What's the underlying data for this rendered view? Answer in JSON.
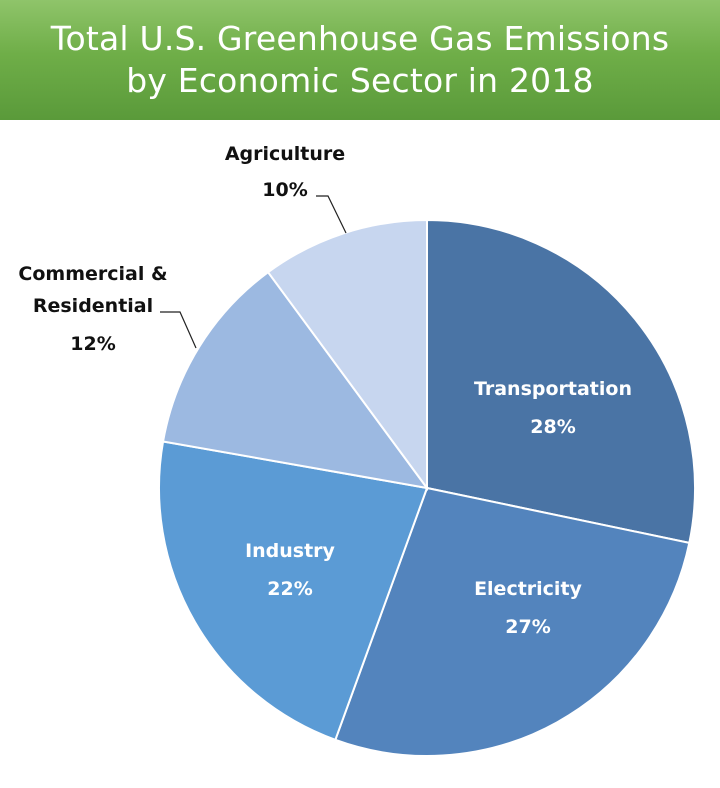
{
  "title": {
    "line1": "Total U.S. Greenhouse Gas Emissions",
    "line2": "by Economic Sector in 2018"
  },
  "colors": {
    "title_bg": "#6fae48",
    "transportation": "#4a74a5",
    "electricity": "#5384bd",
    "industry": "#5b9bd5",
    "commercial_residential": "#9cb9e1",
    "agriculture": "#c7d6ef"
  },
  "chart_data": {
    "type": "pie",
    "title": "Total U.S. Greenhouse Gas Emissions by Economic Sector in 2018",
    "unit": "%",
    "slices": [
      {
        "label": "Transportation",
        "value": 28,
        "value_label": "28%",
        "color": "#4a74a5",
        "label_position": "inside"
      },
      {
        "label": "Electricity",
        "value": 27,
        "value_label": "27%",
        "color": "#5384bd",
        "label_position": "inside"
      },
      {
        "label": "Industry",
        "value": 22,
        "value_label": "22%",
        "color": "#5b9bd5",
        "label_position": "inside"
      },
      {
        "label": "Commercial & Residential",
        "label_lines": [
          "Commercial &",
          "Residential"
        ],
        "value": 12,
        "value_label": "12%",
        "color": "#9cb9e1",
        "label_position": "outside"
      },
      {
        "label": "Agriculture",
        "value": 10,
        "value_label": "10%",
        "color": "#c7d6ef",
        "label_position": "outside"
      }
    ],
    "start_angle_deg": 0,
    "direction": "clockwise",
    "legend": "none"
  }
}
